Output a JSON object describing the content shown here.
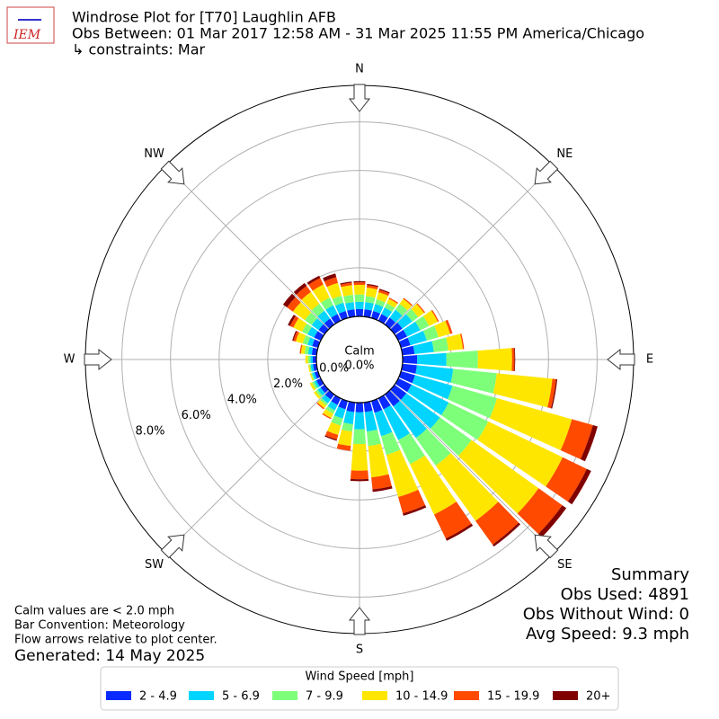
{
  "logo": "IEM",
  "title": [
    "Windrose Plot for [T70] Laughlin AFB",
    "Obs Between: 01 Mar 2017 12:58 AM - 31 Mar 2025 11:55 PM America/Chicago",
    "↳ constraints: Mar"
  ],
  "notes": [
    "Calm values are < 2.0 mph",
    "Bar Convention: Meteorology",
    "Flow arrows relative to plot center."
  ],
  "generated": "Generated: 14 May 2025",
  "summary": [
    "Summary",
    "Obs Used: 4891",
    "Obs Without Wind: 0",
    "Avg Speed: 9.3 mph"
  ],
  "chart_data": {
    "type": "windrose",
    "directions": [
      0,
      10,
      20,
      30,
      40,
      50,
      60,
      70,
      80,
      90,
      100,
      110,
      120,
      130,
      140,
      150,
      160,
      170,
      180,
      190,
      200,
      210,
      220,
      230,
      240,
      250,
      260,
      270,
      280,
      290,
      300,
      310,
      320,
      330,
      340,
      350
    ],
    "rlim": [
      0,
      9.5
    ],
    "rticks": [
      {
        "value": 0,
        "label": "0.0%"
      },
      {
        "value": 2,
        "label": "2.0%"
      },
      {
        "value": 4,
        "label": "4.0%"
      },
      {
        "value": 6,
        "label": "6.0%"
      },
      {
        "value": 8,
        "label": "8.0%"
      }
    ],
    "compass": [
      {
        "label": "N",
        "angle": 0
      },
      {
        "label": "NE",
        "angle": 45
      },
      {
        "label": "E",
        "angle": 90
      },
      {
        "label": "SE",
        "angle": 135
      },
      {
        "label": "S",
        "angle": 180
      },
      {
        "label": "SW",
        "angle": 225
      },
      {
        "label": "W",
        "angle": 270
      },
      {
        "label": "NW",
        "angle": 315
      }
    ],
    "calm": {
      "label": "Calm",
      "value": 0,
      "value_label": "0.0%"
    },
    "legend_title": "Wind Speed [mph]",
    "series": [
      {
        "name": "2 - 4.9",
        "color": "#0a2bff",
        "values": [
          0.3,
          0.3,
          0.3,
          0.3,
          0.35,
          0.4,
          0.4,
          0.4,
          0.5,
          0.6,
          0.6,
          0.6,
          0.6,
          0.6,
          0.6,
          0.5,
          0.5,
          0.4,
          0.4,
          0.4,
          0.35,
          0.3,
          0.25,
          0.2,
          0.2,
          0.15,
          0.15,
          0.15,
          0.2,
          0.25,
          0.3,
          0.3,
          0.3,
          0.3,
          0.3,
          0.3
        ]
      },
      {
        "name": "5 - 6.9",
        "color": "#00d4ff",
        "values": [
          0.3,
          0.3,
          0.3,
          0.3,
          0.4,
          0.5,
          0.6,
          0.7,
          0.8,
          1.2,
          1.5,
          1.6,
          1.7,
          1.7,
          1.6,
          1.4,
          1.0,
          0.8,
          0.7,
          0.5,
          0.4,
          0.25,
          0.2,
          0.15,
          0.1,
          0.1,
          0.1,
          0.1,
          0.15,
          0.2,
          0.3,
          0.35,
          0.4,
          0.4,
          0.35,
          0.3
        ]
      },
      {
        "name": "7 - 9.9",
        "color": "#7dff7a",
        "values": [
          0.3,
          0.25,
          0.2,
          0.2,
          0.3,
          0.3,
          0.4,
          0.5,
          0.6,
          1.3,
          1.8,
          1.9,
          1.8,
          1.6,
          1.4,
          1.1,
          0.8,
          0.6,
          0.6,
          0.3,
          0.3,
          0.15,
          0.1,
          0.1,
          0.1,
          0.05,
          0.05,
          0.1,
          0.15,
          0.2,
          0.25,
          0.35,
          0.35,
          0.35,
          0.3,
          0.3
        ]
      },
      {
        "name": "10 - 14.9",
        "color": "#ffe600",
        "values": [
          0.4,
          0.35,
          0.3,
          0.2,
          0.25,
          0.3,
          0.4,
          0.5,
          0.6,
          1.4,
          2.3,
          3.2,
          3.4,
          3.4,
          2.8,
          2.3,
          1.8,
          1.3,
          1.1,
          0.6,
          0.4,
          0.2,
          0.15,
          0.1,
          0.1,
          0.05,
          0.05,
          0.1,
          0.15,
          0.3,
          0.4,
          0.6,
          0.6,
          0.6,
          0.55,
          0.4
        ]
      },
      {
        "name": "15 - 19.9",
        "color": "#ff4a00",
        "values": [
          0.1,
          0.1,
          0.1,
          0.05,
          0.05,
          0.05,
          0.05,
          0.1,
          0.05,
          0.1,
          0.15,
          0.9,
          1.1,
          1.2,
          1.2,
          1.1,
          0.7,
          0.5,
          0.35,
          0.2,
          0.2,
          0.05,
          0.05,
          0,
          0,
          0,
          0,
          0,
          0.05,
          0.1,
          0.15,
          0.3,
          0.3,
          0.3,
          0.25,
          0.1
        ]
      },
      {
        "name": "20+",
        "color": "#800000",
        "values": [
          0.05,
          0.05,
          0.05,
          0,
          0,
          0,
          0,
          0,
          0,
          0.03,
          0.05,
          0.2,
          0.2,
          0.2,
          0.1,
          0.1,
          0.1,
          0.1,
          0.08,
          0,
          0.05,
          0,
          0,
          0,
          0,
          0,
          0,
          0,
          0,
          0.05,
          0.1,
          0.2,
          0.15,
          0.1,
          0.15,
          0.05
        ]
      }
    ]
  }
}
